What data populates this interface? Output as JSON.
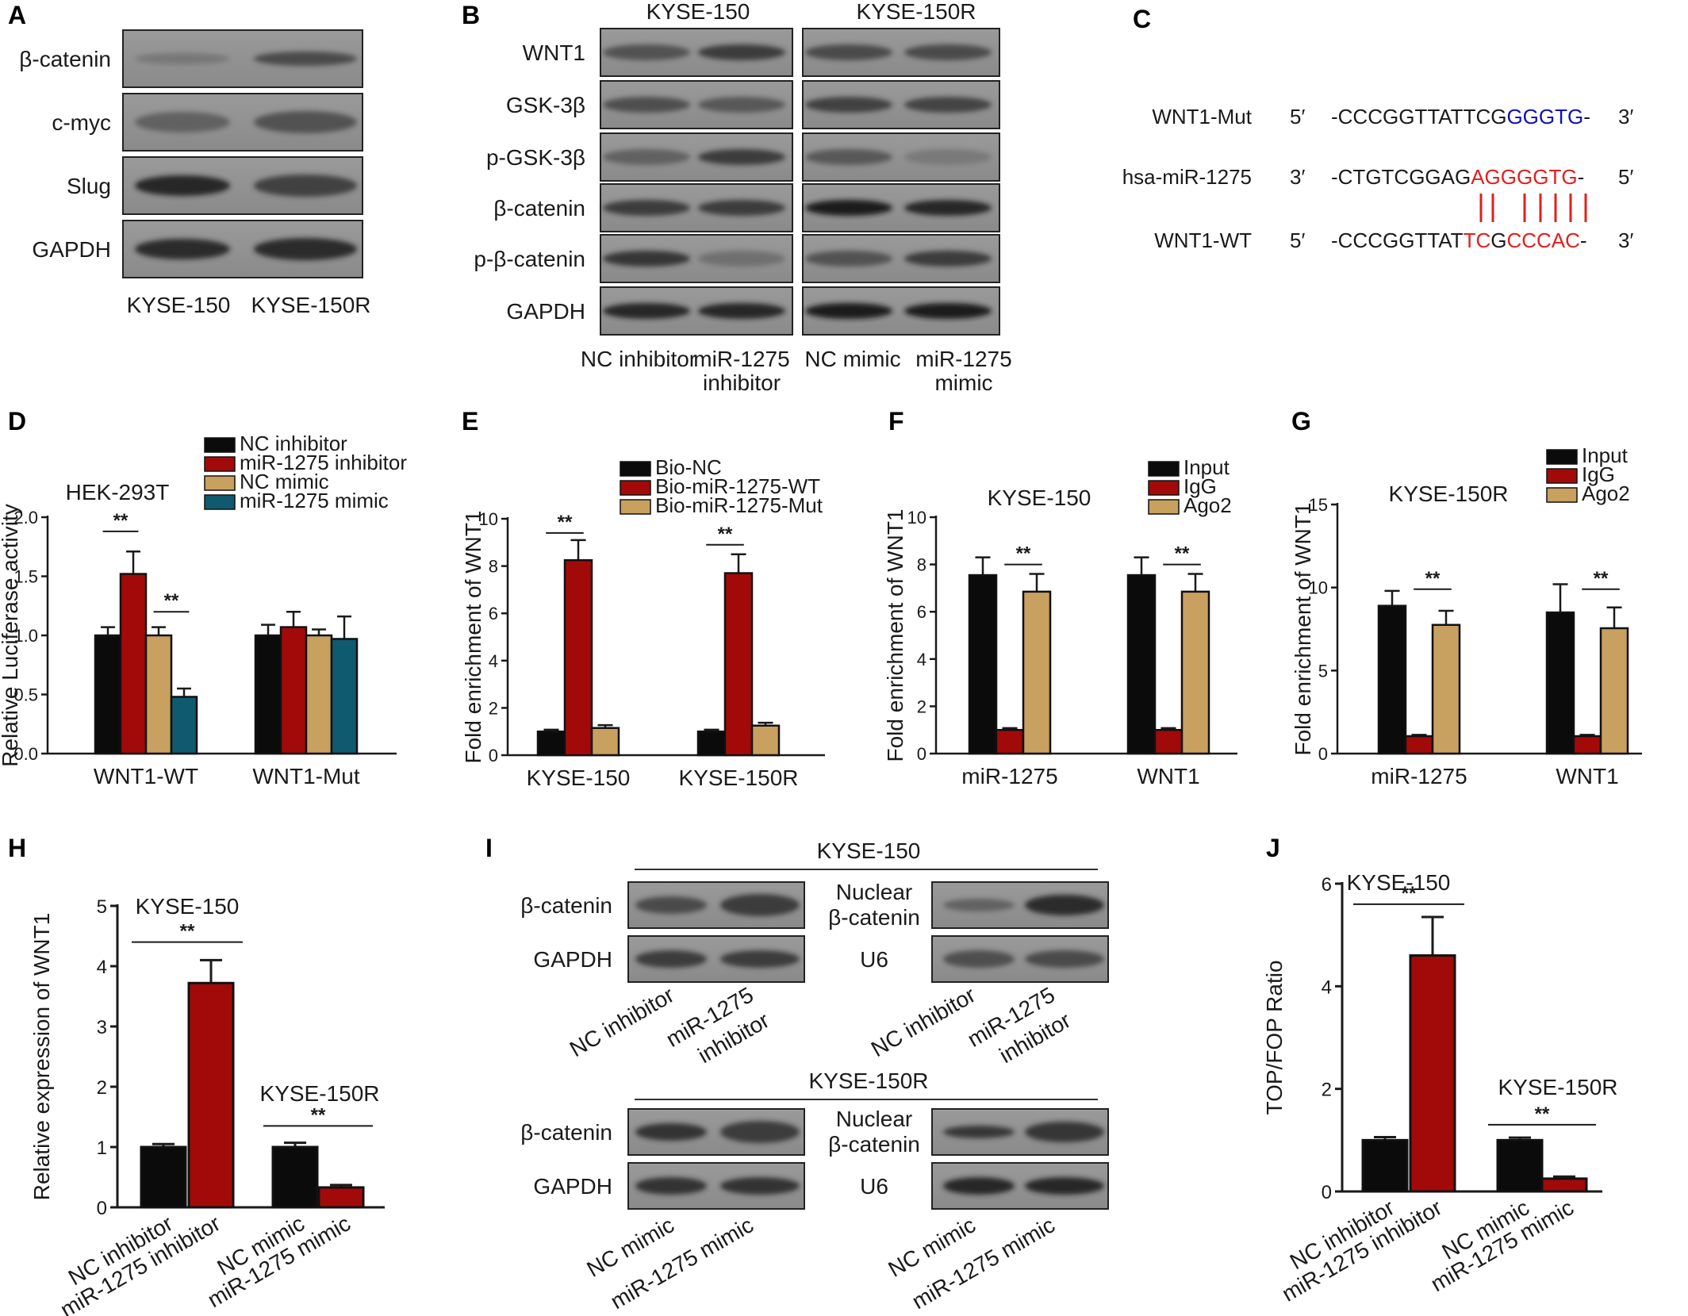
{
  "colors": {
    "black": "#0b0b0b",
    "red": "#a20a0a",
    "tan": "#c8a060",
    "teal": "#0f5a6e",
    "seq_red": "#e0201c",
    "seq_blue": "#1010b8"
  },
  "panels": {
    "A": "A",
    "B": "B",
    "C": "C",
    "D": "D",
    "E": "E",
    "F": "F",
    "G": "G",
    "H": "H",
    "I": "I",
    "J": "J"
  },
  "blotA": {
    "rows": [
      "β-catenin",
      "c-myc",
      "Slug",
      "GAPDH"
    ],
    "lanes": [
      "KYSE-150",
      "KYSE-150R"
    ]
  },
  "blotB": {
    "cells": [
      "KYSE-150",
      "KYSE-150R"
    ],
    "rows": [
      "WNT1",
      "GSK-3β",
      "p-GSK-3β",
      "β-catenin",
      "p-β-catenin",
      "GAPDH"
    ],
    "lanes": [
      [
        "NC inhibitor"
      ],
      [
        "miR-1275",
        "inhibitor"
      ],
      [
        "NC mimic"
      ],
      [
        "miR-1275",
        "mimic"
      ]
    ]
  },
  "panelC": {
    "rows": [
      {
        "name": "WNT1-Mut",
        "left_end": "5′",
        "right_end": "3′",
        "parts": [
          {
            "t": "-CCCGGTTATTCG",
            "c": "k"
          },
          {
            "t": "GGGTG",
            "c": "b"
          },
          {
            "t": "-",
            "c": "k"
          }
        ]
      },
      {
        "name": "hsa-miR-1275",
        "left_end": "3′",
        "right_end": "5′",
        "parts": [
          {
            "t": "-CTGTCGGAG",
            "c": "k"
          },
          {
            "t": "AGGGGTG",
            "c": "r"
          },
          {
            "t": "-",
            "c": "k"
          }
        ]
      },
      {
        "name": "WNT1-WT",
        "left_end": "5′",
        "right_end": "3′",
        "parts": [
          {
            "t": "-CCCGGTTAT",
            "c": "k"
          },
          {
            "t": "TC",
            "c": "r"
          },
          {
            "t": "G",
            "c": "k"
          },
          {
            "t": "CCCAC",
            "c": "r"
          },
          {
            "t": "-",
            "c": "k"
          }
        ]
      }
    ]
  },
  "chart_data": [
    {
      "panel": "D",
      "type": "bar",
      "title": "HEK-293T",
      "ylabel": "Relative Luciferase activity",
      "ylim": [
        0,
        2.0
      ],
      "yticks": [
        "0.0",
        "0.5",
        "1.0",
        "1.5",
        "2.0"
      ],
      "categories": [
        "WNT1-WT",
        "WNT1-Mut"
      ],
      "series": [
        {
          "name": "NC inhibitor",
          "color": "black",
          "values": [
            1.0,
            1.0
          ],
          "errors": [
            0.07,
            0.09
          ]
        },
        {
          "name": "miR-1275 inhibitor",
          "color": "red",
          "values": [
            1.52,
            1.07
          ],
          "errors": [
            0.19,
            0.13
          ]
        },
        {
          "name": "NC mimic",
          "color": "tan",
          "values": [
            1.0,
            1.0
          ],
          "errors": [
            0.07,
            0.05
          ]
        },
        {
          "name": "miR-1275 mimic",
          "color": "teal",
          "values": [
            0.48,
            0.97
          ],
          "errors": [
            0.07,
            0.19
          ]
        }
      ],
      "sig": [
        {
          "cat": 0,
          "from": 0,
          "to": 1,
          "y": 1.88,
          "label": "**"
        },
        {
          "cat": 0,
          "from": 2,
          "to": 3,
          "y": 1.2,
          "label": "**"
        }
      ]
    },
    {
      "panel": "E",
      "type": "bar",
      "ylabel": "Fold enrichment of WNT1",
      "ylim": [
        0,
        10
      ],
      "yticks": [
        "0",
        "2",
        "4",
        "6",
        "8",
        "10"
      ],
      "categories": [
        "KYSE-150",
        "KYSE-150R"
      ],
      "series": [
        {
          "name": "Bio-NC",
          "color": "black",
          "values": [
            1.0,
            1.0
          ],
          "errors": [
            0.08,
            0.08
          ]
        },
        {
          "name": "Bio-miR-1275-WT",
          "color": "red",
          "values": [
            8.25,
            7.7
          ],
          "errors": [
            0.85,
            0.8
          ]
        },
        {
          "name": "Bio-miR-1275-Mut",
          "color": "tan",
          "values": [
            1.15,
            1.25
          ],
          "errors": [
            0.12,
            0.12
          ]
        }
      ],
      "sig": [
        {
          "cat": 0,
          "from": 0,
          "to": 1,
          "y": 9.4,
          "label": "**"
        },
        {
          "cat": 1,
          "from": 0,
          "to": 1,
          "y": 8.9,
          "label": "**"
        }
      ]
    },
    {
      "panel": "F",
      "type": "bar",
      "title": "KYSE-150",
      "ylabel": "Fold enrichment of WNT1",
      "ylim": [
        0,
        10
      ],
      "yticks": [
        "0",
        "2",
        "4",
        "6",
        "8",
        "10"
      ],
      "categories": [
        "miR-1275",
        "WNT1"
      ],
      "series": [
        {
          "name": "Input",
          "color": "black",
          "values": [
            7.55,
            7.55
          ],
          "errors": [
            0.75,
            0.75
          ]
        },
        {
          "name": "IgG",
          "color": "red",
          "values": [
            1.0,
            1.0
          ],
          "errors": [
            0.08,
            0.08
          ]
        },
        {
          "name": "Ago2",
          "color": "tan",
          "values": [
            6.85,
            6.85
          ],
          "errors": [
            0.75,
            0.75
          ]
        }
      ],
      "sig": [
        {
          "cat": 0,
          "from": 1,
          "to": 2,
          "y": 8.0,
          "label": "**"
        },
        {
          "cat": 1,
          "from": 1,
          "to": 2,
          "y": 8.0,
          "label": "**"
        }
      ]
    },
    {
      "panel": "G",
      "type": "bar",
      "title": "KYSE-150R",
      "ylabel": "Fold enrichment of WNT1",
      "ylim": [
        0,
        15
      ],
      "yticks": [
        "0",
        "5",
        "10",
        "15"
      ],
      "categories": [
        "miR-1275",
        "WNT1"
      ],
      "series": [
        {
          "name": "Input",
          "color": "black",
          "values": [
            8.9,
            8.5
          ],
          "errors": [
            0.9,
            1.7
          ]
        },
        {
          "name": "IgG",
          "color": "red",
          "values": [
            1.05,
            1.05
          ],
          "errors": [
            0.08,
            0.08
          ]
        },
        {
          "name": "Ago2",
          "color": "tan",
          "values": [
            7.75,
            7.55
          ],
          "errors": [
            0.85,
            1.25
          ]
        }
      ],
      "sig": [
        {
          "cat": 0,
          "from": 1,
          "to": 2,
          "y": 9.9,
          "label": "**"
        },
        {
          "cat": 1,
          "from": 1,
          "to": 2,
          "y": 9.9,
          "label": "**"
        }
      ]
    },
    {
      "panel": "H",
      "type": "bar",
      "ylabel": "Relative expression of WNT1",
      "ylim": [
        0,
        5
      ],
      "yticks": [
        "0",
        "1",
        "2",
        "3",
        "4",
        "5"
      ],
      "groups": [
        "KYSE-150",
        "KYSE-150R"
      ],
      "categories": [
        "NC inhibitor",
        "miR-1275 inhibitor",
        "NC mimic",
        "miR-1275 mimic"
      ],
      "values": [
        1.0,
        3.72,
        1.0,
        0.33
      ],
      "errors": [
        0.05,
        0.38,
        0.07,
        0.04
      ],
      "colors": [
        "black",
        "red",
        "black",
        "red"
      ],
      "sig": [
        {
          "from": 0,
          "to": 1,
          "y": 4.4,
          "label": "**"
        },
        {
          "from": 2,
          "to": 3,
          "y": 1.35,
          "label": "**"
        }
      ]
    },
    {
      "panel": "J",
      "type": "bar",
      "ylabel": "TOP/FOP Ratio",
      "ylim": [
        0,
        6
      ],
      "yticks": [
        "0",
        "2",
        "4",
        "6"
      ],
      "groups": [
        "KYSE-150",
        "KYSE-150R"
      ],
      "categories": [
        "NC inhibitor",
        "miR-1275 inhibitor",
        "NC mimic",
        "miR-1275 mimic"
      ],
      "values": [
        1.0,
        4.6,
        1.0,
        0.25
      ],
      "errors": [
        0.06,
        0.75,
        0.05,
        0.04
      ],
      "colors": [
        "black",
        "red",
        "black",
        "red"
      ],
      "sig": [
        {
          "from": 0,
          "to": 1,
          "y": 5.6,
          "label": "**"
        },
        {
          "from": 2,
          "to": 3,
          "y": 1.3,
          "label": "**"
        }
      ]
    }
  ],
  "blotI": {
    "top": {
      "title": "KYSE-150",
      "left_rows": [
        "β-catenin",
        "GAPDH"
      ],
      "right_rows": [
        [
          "Nuclear",
          "β-catenin"
        ],
        [
          "U6"
        ]
      ],
      "lanes": [
        [
          "NC inhibitor"
        ],
        [
          "miR-1275",
          "inhibitor"
        ]
      ]
    },
    "bottom": {
      "title": "KYSE-150R",
      "left_rows": [
        "β-catenin",
        "GAPDH"
      ],
      "right_rows": [
        [
          "Nuclear",
          "β-catenin"
        ],
        [
          "U6"
        ]
      ],
      "lanes": [
        [
          "NC mimic"
        ],
        [
          "miR-1275 mimic"
        ]
      ]
    }
  }
}
